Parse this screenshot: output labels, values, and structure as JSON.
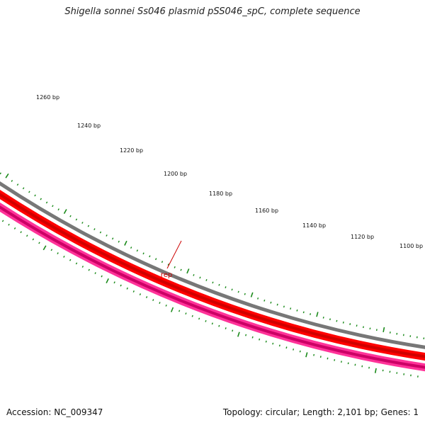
{
  "title": "Shigella sonnei Ss046 plasmid pSS046_spC, complete sequence",
  "colors": {
    "backbone": "#777777",
    "red_track": "#ff0000",
    "red_track_dark": "#d00000",
    "pink_track": "#ff3399",
    "pink_track_dark": "#cc0066",
    "ticks": "#1a8a1a",
    "gene_label": "#cc0000"
  },
  "tick_labels": [
    "1260 bp",
    "1240 bp",
    "1220 bp",
    "1200 bp",
    "1180 bp",
    "1160 bp",
    "1140 bp",
    "1120 bp",
    "1100 bp"
  ],
  "gene": {
    "name": "rep"
  },
  "footer": {
    "accession": "Accession: NC_009347",
    "summary": "Topology: circular; Length: 2,101 bp; Genes: 1"
  }
}
